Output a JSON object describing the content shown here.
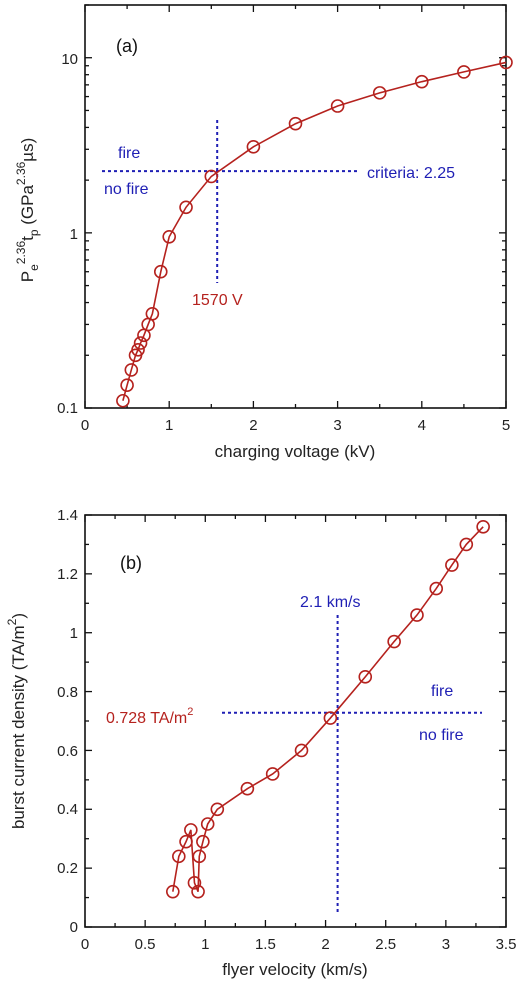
{
  "colors": {
    "series": "#b5221e",
    "annotation": "#1f1fb4",
    "axis": "#111111"
  },
  "chart_data": [
    {
      "type": "scatter",
      "panel_label": "(a)",
      "xlabel": "charging voltage (kV)",
      "ylabel": {
        "base": "P",
        "sub1": "e",
        "sup1": "2.36",
        "mid": "t",
        "sub2": "p",
        "rest": " (GPa",
        "sup2": "2.36",
        "end": "µs)"
      },
      "xlim": [
        0,
        5
      ],
      "ylim": [
        0.1,
        20
      ],
      "yscale": "log",
      "x_ticks": [
        "0",
        "1",
        "2",
        "3",
        "4",
        "5"
      ],
      "y_ticks": [
        "0.1",
        "1",
        "10"
      ],
      "series": [
        {
          "x": [
            0.45,
            0.5,
            0.55,
            0.6,
            0.63,
            0.66,
            0.7,
            0.75,
            0.8,
            0.9,
            1.0,
            1.2,
            1.5,
            2.0,
            2.5,
            3.0,
            3.5,
            4.0,
            4.5,
            5.0
          ],
          "y": [
            0.11,
            0.135,
            0.165,
            0.2,
            0.215,
            0.235,
            0.26,
            0.3,
            0.345,
            0.6,
            0.95,
            1.4,
            2.1,
            3.1,
            4.2,
            5.3,
            6.3,
            7.3,
            8.3,
            9.4
          ]
        }
      ],
      "annotations": {
        "fire": "fire",
        "no_fire": "no fire",
        "criteria": "criteria: 2.25",
        "threshold_x_label": "1570 V",
        "criteria_value": 2.25,
        "threshold_x": 1.57
      }
    },
    {
      "type": "scatter",
      "panel_label": "(b)",
      "xlabel": "flyer velocity (km/s)",
      "ylabel": {
        "text": "burst current density (TA/m",
        "sup": "2",
        "end": ")"
      },
      "xlim": [
        0,
        3.5
      ],
      "ylim": [
        0,
        1.4
      ],
      "x_ticks": [
        "0",
        "0.5",
        "1",
        "1.5",
        "2",
        "2.5",
        "3",
        "3.5"
      ],
      "y_ticks": [
        "0",
        "0.2",
        "0.4",
        "0.6",
        "0.8",
        "1",
        "1.2",
        "1.4"
      ],
      "series": [
        {
          "x": [
            0.73,
            0.78,
            0.84,
            0.88,
            0.91,
            0.94,
            0.95,
            0.98,
            1.02,
            1.1,
            1.35,
            1.56,
            1.8,
            2.04,
            2.33,
            2.57,
            2.76,
            2.92,
            3.05,
            3.17,
            3.31
          ],
          "y": [
            0.12,
            0.24,
            0.29,
            0.33,
            0.15,
            0.12,
            0.24,
            0.29,
            0.35,
            0.4,
            0.47,
            0.52,
            0.6,
            0.71,
            0.85,
            0.97,
            1.06,
            1.15,
            1.23,
            1.3,
            1.36
          ]
        }
      ],
      "annotations": {
        "fire": "fire",
        "no_fire": "no fire",
        "velocity_label": "2.1 km/s",
        "density_label": "0.728 TA/m",
        "density_sup": "2",
        "velocity_value": 2.1,
        "density_value": 0.728
      }
    }
  ]
}
